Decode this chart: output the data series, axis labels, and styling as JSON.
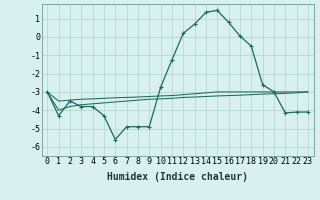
{
  "xlabel": "Humidex (Indice chaleur)",
  "bg_color": "#d8f0ee",
  "grid_color": "#b0d4ce",
  "line_color": "#1a6b5e",
  "x": [
    0,
    1,
    2,
    3,
    4,
    5,
    6,
    7,
    8,
    9,
    10,
    11,
    12,
    13,
    14,
    15,
    16,
    17,
    18,
    19,
    20,
    21,
    22,
    23
  ],
  "y_curve": [
    -3.0,
    -4.3,
    -3.5,
    -3.8,
    -3.8,
    -4.3,
    -5.6,
    -4.9,
    -4.9,
    -4.9,
    -2.75,
    -1.25,
    0.2,
    0.7,
    1.35,
    1.45,
    0.8,
    0.05,
    -0.5,
    -2.6,
    -3.0,
    -4.15,
    -4.1,
    -4.1
  ],
  "y_upper_line": [
    -3.0,
    -3.5,
    -3.45,
    -3.4,
    -3.38,
    -3.35,
    -3.32,
    -3.3,
    -3.28,
    -3.25,
    -3.22,
    -3.2,
    -3.15,
    -3.1,
    -3.05,
    -3.0,
    -3.0,
    -3.0,
    -3.0,
    -3.0,
    -3.0,
    -3.0,
    -3.0,
    -3.0
  ],
  "y_lower_line": [
    -3.0,
    -4.0,
    -3.8,
    -3.7,
    -3.65,
    -3.6,
    -3.55,
    -3.5,
    -3.45,
    -3.4,
    -3.38,
    -3.35,
    -3.3,
    -3.28,
    -3.25,
    -3.22,
    -3.2,
    -3.18,
    -3.15,
    -3.12,
    -3.1,
    -3.08,
    -3.05,
    -3.0
  ],
  "ylim": [
    -6.5,
    1.8
  ],
  "xlim": [
    -0.5,
    23.5
  ],
  "yticks": [
    -6,
    -5,
    -4,
    -3,
    -2,
    -1,
    0,
    1
  ],
  "xticks": [
    0,
    1,
    2,
    3,
    4,
    5,
    6,
    7,
    8,
    9,
    10,
    11,
    12,
    13,
    14,
    15,
    16,
    17,
    18,
    19,
    20,
    21,
    22,
    23
  ],
  "xlabel_fontsize": 7,
  "tick_fontsize": 6,
  "lw_curve": 0.9,
  "lw_lines": 0.75
}
